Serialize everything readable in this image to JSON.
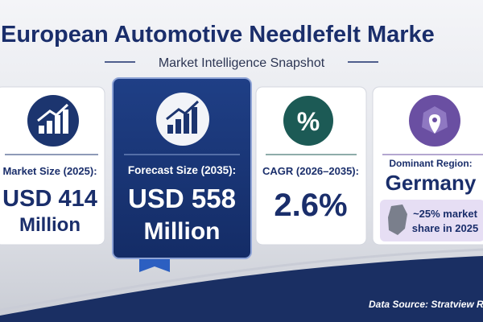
{
  "header": {
    "title": "European Automotive Needlefelt Marke",
    "subtitle": "Market Intelligence Snapshot"
  },
  "cards": [
    {
      "label": "Market Size (2025):",
      "value": "USD 414",
      "unit": "Million"
    },
    {
      "label": "Forecast Size (2035):",
      "value": "USD 558",
      "unit": "Million"
    },
    {
      "icon": "%",
      "label": "CAGR (2026–2035):",
      "value": "2.6%"
    },
    {
      "label": "Dominant Region:",
      "value": "Germany",
      "note": [
        "~25% market",
        "share in 2025"
      ]
    }
  ],
  "footer": {
    "source": "Data Source: Stratview Re"
  }
}
